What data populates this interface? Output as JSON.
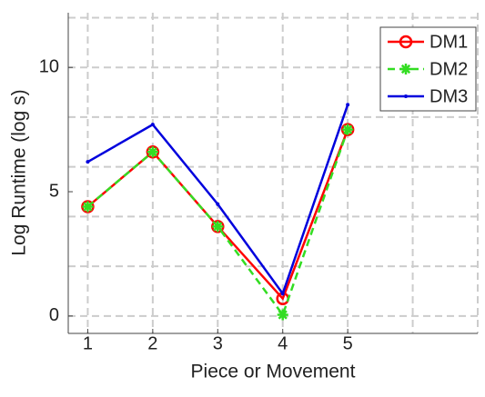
{
  "chart_data": {
    "type": "line",
    "x_label": "Piece or Movement",
    "y_label": "Log Runtime (log s)",
    "x": [
      1,
      2,
      3,
      4,
      5
    ],
    "series": [
      {
        "name": "DM1",
        "color": "#ff0000",
        "marker": "circle",
        "dash": "solid",
        "values": [
          4.4,
          6.6,
          3.6,
          0.7,
          7.5
        ]
      },
      {
        "name": "DM2",
        "color": "#33dd22",
        "marker": "asterisk",
        "dash": "dashed",
        "values": [
          4.4,
          6.6,
          3.6,
          0.05,
          7.5
        ]
      },
      {
        "name": "DM3",
        "color": "#0000dd",
        "marker": "dot",
        "dash": "solid",
        "values": [
          6.2,
          7.7,
          4.5,
          0.9,
          8.5
        ]
      }
    ],
    "xlim": [
      0.7,
      7
    ],
    "ylim": [
      -0.7,
      12.2
    ],
    "xticks": [
      1,
      2,
      3,
      4,
      5
    ],
    "yticks": [
      0,
      5,
      10
    ],
    "xgrid": [
      1,
      2,
      3,
      4,
      5,
      6,
      7
    ],
    "ygrid": [
      0,
      2,
      4,
      6,
      8,
      10,
      12
    ],
    "grid": true,
    "legend": "top-right"
  }
}
